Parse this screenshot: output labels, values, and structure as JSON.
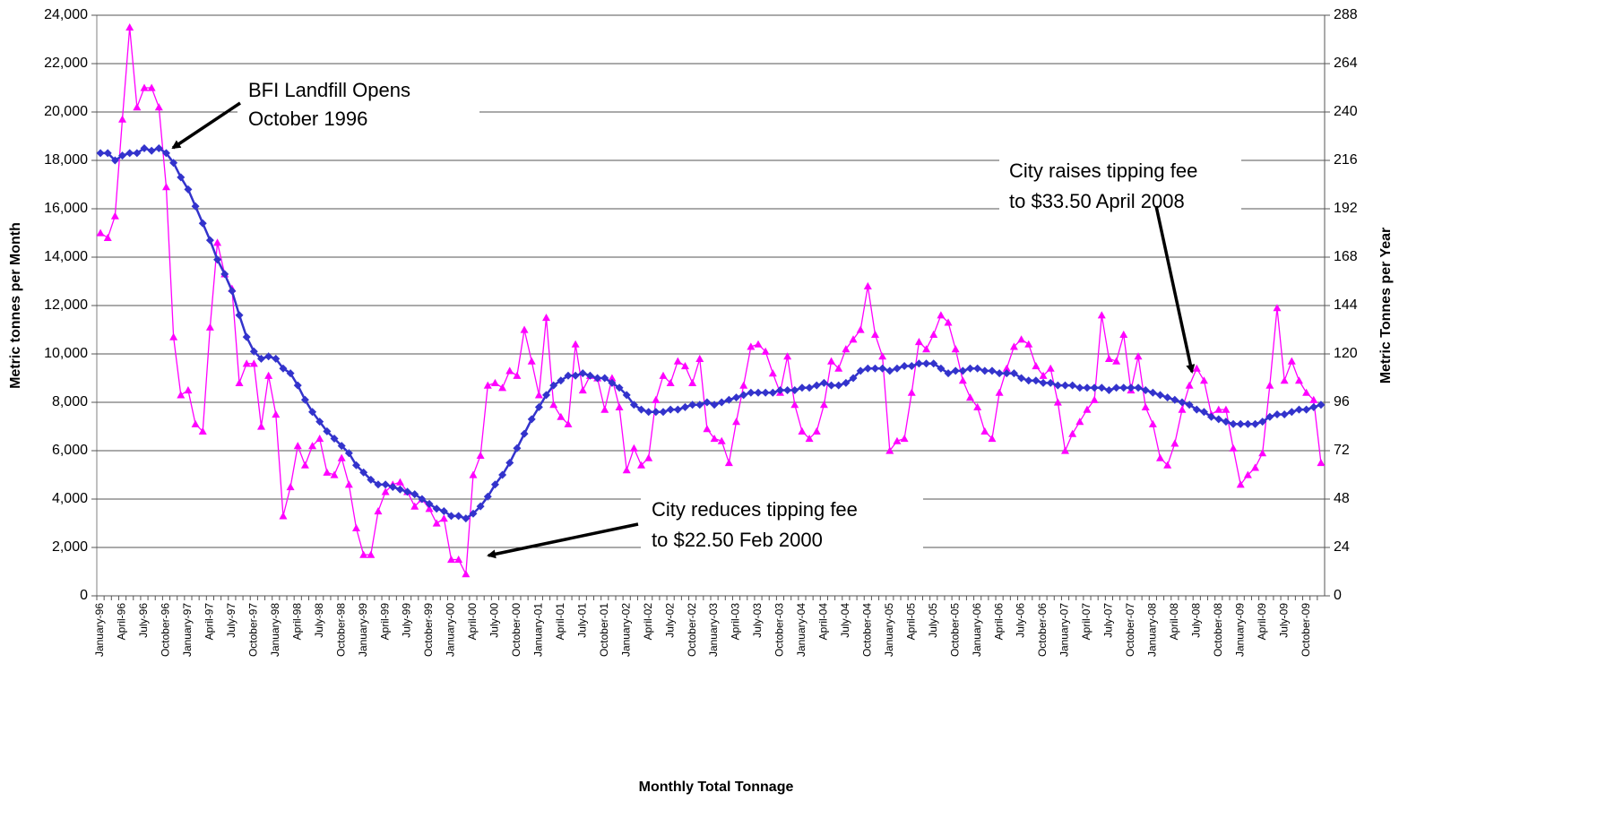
{
  "chart_data": {
    "type": "line",
    "x_label": "Monthly Total Tonnage",
    "y_label": "Metric tonnes per Month",
    "y2_label": "Metric Tonnes per Year",
    "categories": [
      "January-96",
      null,
      null,
      "April-96",
      null,
      null,
      "July-96",
      null,
      null,
      "October-96",
      null,
      null,
      "January-97",
      null,
      null,
      "April-97",
      null,
      null,
      "July-97",
      null,
      null,
      "October-97",
      null,
      null,
      "January-98",
      null,
      null,
      "April-98",
      null,
      null,
      "July-98",
      null,
      null,
      "October-98",
      null,
      null,
      "January-99",
      null,
      null,
      "April-99",
      null,
      null,
      "July-99",
      null,
      null,
      "October-99",
      null,
      null,
      "January-00",
      null,
      null,
      "April-00",
      null,
      null,
      "July-00",
      null,
      null,
      "October-00",
      null,
      null,
      "January-01",
      null,
      null,
      "April-01",
      null,
      null,
      "July-01",
      null,
      null,
      "October-01",
      null,
      null,
      "January-02",
      null,
      null,
      "April-02",
      null,
      null,
      "July-02",
      null,
      null,
      "October-02",
      null,
      null,
      "January-03",
      null,
      null,
      "April-03",
      null,
      null,
      "July-03",
      null,
      null,
      "October-03",
      null,
      null,
      "January-04",
      null,
      null,
      "April-04",
      null,
      null,
      "July-04",
      null,
      null,
      "October-04",
      null,
      null,
      "January-05",
      null,
      null,
      "April-05",
      null,
      null,
      "July-05",
      null,
      null,
      "October-05",
      null,
      null,
      "January-06",
      null,
      null,
      "April-06",
      null,
      null,
      "July-06",
      null,
      null,
      "October-06",
      null,
      null,
      "January-07",
      null,
      null,
      "April-07",
      null,
      null,
      "July-07",
      null,
      null,
      "October-07",
      null,
      null,
      "January-08",
      null,
      null,
      "April-08",
      null,
      null,
      "July-08",
      null,
      null,
      "October-08",
      null,
      null,
      "January-09",
      null,
      null,
      "April-09",
      null,
      null,
      "July-09",
      null,
      null,
      "October-09",
      null,
      null
    ],
    "series": [
      {
        "color": "#ff00ff",
        "marker": "triangle",
        "values": [
          15000,
          14800,
          15700,
          19700,
          23500,
          20200,
          21000,
          21000,
          20200,
          16900,
          10700,
          8300,
          8500,
          7100,
          6800,
          11100,
          14600,
          13300,
          12700,
          8800,
          9600,
          9600,
          7000,
          9100,
          7500,
          3300,
          4500,
          6200,
          5400,
          6200,
          6500,
          5100,
          5000,
          5700,
          4600,
          2800,
          1700,
          1700,
          3500,
          4300,
          4600,
          4700,
          4300,
          3700,
          4000,
          3600,
          3000,
          3200,
          1500,
          1500,
          900,
          5000,
          5800,
          8700,
          8800,
          8600,
          9300,
          9100,
          11000,
          9700,
          8300,
          11500,
          7900,
          7400,
          7100,
          10400,
          8500,
          9100,
          9000,
          7700,
          9000,
          7800,
          5200,
          6100,
          5400,
          5700,
          8100,
          9100,
          8800,
          9700,
          9500,
          8800,
          9800,
          6900,
          6500,
          6400,
          5500,
          7200,
          8700,
          10300,
          10400,
          10100,
          9200,
          8400,
          9900,
          7900,
          6800,
          6500,
          6800,
          7900,
          9700,
          9400,
          10200,
          10600,
          11000,
          12800,
          10800,
          9900,
          6000,
          6400,
          6500,
          8400,
          10500,
          10200,
          10800,
          11600,
          11300,
          10200,
          8900,
          8200,
          7800,
          6800,
          6500,
          8400,
          9400,
          10300,
          10600,
          10400,
          9500,
          9100,
          9400,
          8000,
          6000,
          6700,
          7200,
          7700,
          8100,
          11600,
          9800,
          9700,
          10800,
          8500,
          9900,
          7800,
          7100,
          5700,
          5400,
          6300,
          7700,
          8700,
          9400,
          8900,
          7500,
          7700,
          7700,
          6100,
          4600,
          5000,
          5300,
          5900,
          8700,
          11900,
          8900,
          9700,
          8900,
          8400,
          8100,
          5500
        ]
      },
      {
        "color": "#3333cc",
        "marker": "diamond",
        "values": [
          18300,
          18300,
          18000,
          18200,
          18300,
          18300,
          18500,
          18400,
          18500,
          18300,
          17900,
          17300,
          16800,
          16100,
          15400,
          14700,
          13900,
          13300,
          12600,
          11600,
          10700,
          10100,
          9800,
          9900,
          9800,
          9400,
          9200,
          8700,
          8100,
          7600,
          7200,
          6800,
          6500,
          6200,
          5900,
          5400,
          5100,
          4800,
          4600,
          4600,
          4500,
          4400,
          4300,
          4200,
          4000,
          3800,
          3600,
          3500,
          3300,
          3300,
          3200,
          3400,
          3700,
          4100,
          4600,
          5000,
          5500,
          6100,
          6700,
          7300,
          7800,
          8300,
          8700,
          8900,
          9100,
          9100,
          9200,
          9100,
          9000,
          9000,
          8800,
          8600,
          8300,
          7900,
          7700,
          7600,
          7600,
          7600,
          7700,
          7700,
          7800,
          7900,
          7900,
          8000,
          7900,
          8000,
          8100,
          8200,
          8300,
          8400,
          8400,
          8400,
          8400,
          8500,
          8500,
          8500,
          8600,
          8600,
          8700,
          8800,
          8700,
          8700,
          8800,
          9000,
          9300,
          9400,
          9400,
          9400,
          9300,
          9400,
          9500,
          9500,
          9600,
          9600,
          9600,
          9400,
          9200,
          9300,
          9300,
          9400,
          9400,
          9300,
          9300,
          9200,
          9200,
          9200,
          9000,
          8900,
          8900,
          8800,
          8800,
          8700,
          8700,
          8700,
          8600,
          8600,
          8600,
          8600,
          8500,
          8600,
          8600,
          8600,
          8600,
          8500,
          8400,
          8300,
          8200,
          8100,
          8000,
          7900,
          7700,
          7600,
          7400,
          7300,
          7200,
          7100,
          7100,
          7100,
          7100,
          7200,
          7400,
          7500,
          7500,
          7600,
          7700,
          7700,
          7800,
          7900
        ]
      }
    ],
    "ylim": [
      0,
      24000
    ],
    "yticks": [
      0,
      {
        "value": 2000,
        "label": "2,000"
      },
      {
        "value": 4000,
        "label": "4,000"
      },
      {
        "value": 6000,
        "label": "6,000"
      },
      {
        "value": 8000,
        "label": "8,000"
      },
      {
        "value": 10000,
        "label": "10,000"
      },
      {
        "value": 12000,
        "label": "12,000"
      },
      {
        "value": 14000,
        "label": "14,000"
      },
      {
        "value": 16000,
        "label": "16,000"
      },
      {
        "value": 18000,
        "label": "18,000"
      },
      {
        "value": 20000,
        "label": "20,000"
      },
      {
        "value": 22000,
        "label": "22,000"
      },
      {
        "value": 24000,
        "label": "24,000"
      }
    ],
    "y2lim": [
      0,
      288
    ],
    "y2ticks": [
      0,
      24,
      48,
      72,
      96,
      120,
      144,
      168,
      192,
      216,
      240,
      264,
      288
    ],
    "grid": true,
    "annotations": [
      {
        "lines": [
          "BFI Landfill Opens",
          "October 1996"
        ]
      },
      {
        "lines": [
          "City reduces tipping fee",
          "to $22.50 Feb 2000"
        ]
      },
      {
        "lines": [
          "City raises tipping fee",
          "to $33.50 April 2008"
        ]
      }
    ]
  }
}
